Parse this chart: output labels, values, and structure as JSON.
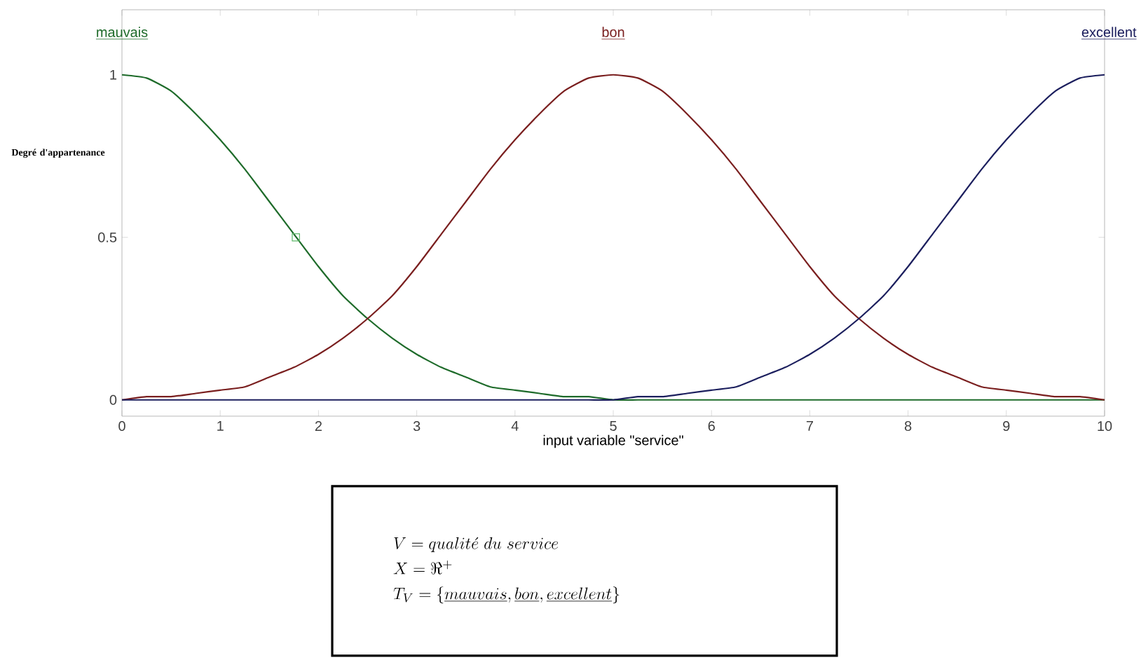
{
  "chart_data": {
    "type": "line",
    "xlabel": "input variable \"service\"",
    "ylabel": "Degré d'appartenance",
    "x": [
      0,
      0.25,
      0.5,
      0.75,
      1,
      1.25,
      1.5,
      1.75,
      2,
      2.25,
      2.5,
      2.75,
      3,
      3.25,
      3.5,
      3.75,
      4,
      4.25,
      4.5,
      4.75,
      5,
      5.25,
      5.5,
      5.75,
      6,
      6.25,
      6.5,
      6.75,
      7,
      7.25,
      7.5,
      7.75,
      8,
      8.25,
      8.5,
      8.75,
      9,
      9.25,
      9.5,
      9.75,
      10
    ],
    "series": [
      {
        "name": "mauvais",
        "color": "#1e6b2a",
        "values": [
          1,
          0.99,
          0.95,
          0.88,
          0.8,
          0.71,
          0.61,
          0.51,
          0.41,
          0.32,
          0.25,
          0.19,
          0.14,
          0.1,
          0.07,
          0.04,
          0.03,
          0.02,
          0.01,
          0.01,
          0,
          0,
          0,
          0,
          0,
          0,
          0,
          0,
          0,
          0,
          0,
          0,
          0,
          0,
          0,
          0,
          0,
          0,
          0,
          0,
          0
        ]
      },
      {
        "name": "bon",
        "color": "#7a1f1f",
        "values": [
          0,
          0.01,
          0.01,
          0.02,
          0.03,
          0.04,
          0.07,
          0.1,
          0.14,
          0.19,
          0.25,
          0.32,
          0.41,
          0.51,
          0.61,
          0.71,
          0.8,
          0.88,
          0.95,
          0.99,
          1,
          0.99,
          0.95,
          0.88,
          0.8,
          0.71,
          0.61,
          0.51,
          0.41,
          0.32,
          0.25,
          0.19,
          0.14,
          0.1,
          0.07,
          0.04,
          0.03,
          0.02,
          0.01,
          0.01,
          0
        ]
      },
      {
        "name": "excellent",
        "color": "#1c1f5e",
        "values": [
          0,
          0,
          0,
          0,
          0,
          0,
          0,
          0,
          0,
          0,
          0,
          0,
          0,
          0,
          0,
          0,
          0,
          0,
          0,
          0,
          0,
          0.01,
          0.01,
          0.02,
          0.03,
          0.04,
          0.07,
          0.1,
          0.14,
          0.19,
          0.25,
          0.32,
          0.41,
          0.51,
          0.61,
          0.71,
          0.8,
          0.88,
          0.95,
          0.99,
          1
        ]
      },
      {
        "type": "scatter",
        "color": "#5fb86a",
        "marker": "square",
        "x": [
          1.77
        ],
        "values": [
          0.5
        ]
      }
    ],
    "xlim": [
      0,
      10
    ],
    "ylim": [
      -0.05,
      1.2
    ],
    "xticks": [
      0,
      1,
      2,
      3,
      4,
      5,
      6,
      7,
      8,
      9,
      10
    ],
    "yticks": [
      0,
      0.5,
      1
    ],
    "annotations": [
      "V = qualit\\acute{e}\\ du\\ service",
      "X = \\Re^{+}",
      "T_V = \\{\\underline{mauvais}, \\underline{bon}, \\underline{excellent}\\}"
    ]
  }
}
